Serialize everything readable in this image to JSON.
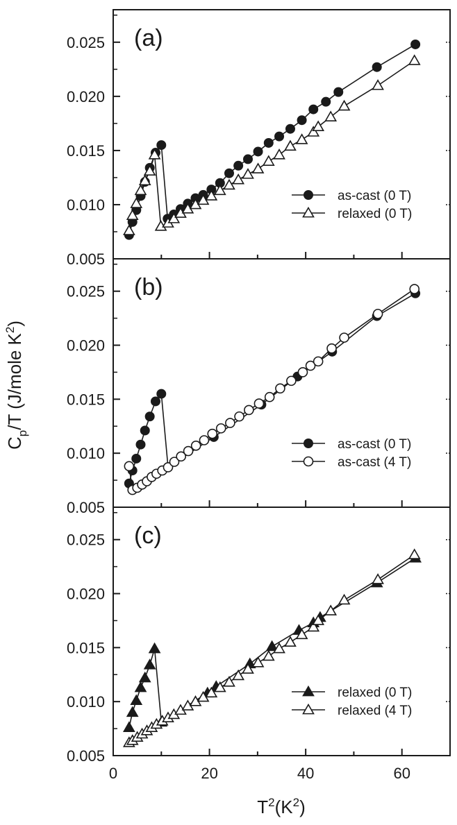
{
  "chart_data": {
    "type": "scatter",
    "xlabel": "T",
    "xlabel_sup": "2",
    "xlabel_tail": "(K",
    "xlabel_sup2": "2",
    "xlabel_close": ")",
    "ylabel_main": "C",
    "ylabel_sub": "p",
    "ylabel_mid": "/T (J/mole K",
    "ylabel_sup": "2",
    "ylabel_close": ")",
    "xlim": [
      0,
      70
    ],
    "ylim": [
      0.005,
      0.028
    ],
    "xticks": [
      0,
      20,
      40,
      60
    ],
    "xtick_labels": [
      "0",
      "20",
      "40",
      "60"
    ],
    "yticks": [
      0.005,
      0.01,
      0.015,
      0.02,
      0.025
    ],
    "ytick_labels": [
      "0.005",
      "0.010",
      "0.015",
      "0.020",
      "0.025"
    ],
    "legend_position": "right",
    "panels": [
      {
        "label": "(a)",
        "series": [
          {
            "name": "as-cast (0 T)",
            "marker": "filled-circle",
            "x": [
              3.3,
              4.0,
              4.8,
              5.7,
              6.6,
              7.6,
              8.8,
              10.0,
              11.3,
              12.6,
              14.0,
              15.5,
              17.1,
              18.7,
              20.4,
              22.2,
              24.1,
              26.0,
              28.0,
              30.1,
              32.3,
              34.5,
              36.8,
              39.2,
              41.6,
              44.2,
              46.8,
              54.8,
              62.8
            ],
            "y": [
              0.0072,
              0.0084,
              0.0095,
              0.0108,
              0.0121,
              0.0134,
              0.0148,
              0.0155,
              0.0087,
              0.0091,
              0.0096,
              0.0101,
              0.0106,
              0.0109,
              0.0114,
              0.012,
              0.0129,
              0.0136,
              0.0142,
              0.0149,
              0.0157,
              0.0163,
              0.017,
              0.0178,
              0.0188,
              0.0195,
              0.0204,
              0.0227,
              0.0248
            ]
          },
          {
            "name": "relaxed (0 T)",
            "marker": "open-triangle",
            "x": [
              3.3,
              4.0,
              4.8,
              5.7,
              6.6,
              7.6,
              8.6,
              9.9,
              11.4,
              12.6,
              14.0,
              15.5,
              17.1,
              18.7,
              20.4,
              22.2,
              24.1,
              26.0,
              28.0,
              30.1,
              32.3,
              34.5,
              36.8,
              39.2,
              41.6,
              42.6,
              45.2,
              48.0,
              55.0,
              62.6
            ],
            "y": [
              0.0076,
              0.009,
              0.0101,
              0.0113,
              0.0122,
              0.0131,
              0.0146,
              0.008,
              0.0083,
              0.0087,
              0.0092,
              0.0096,
              0.01,
              0.0104,
              0.0108,
              0.0113,
              0.0118,
              0.0123,
              0.0128,
              0.0133,
              0.014,
              0.0146,
              0.0154,
              0.016,
              0.0167,
              0.0172,
              0.0181,
              0.0191,
              0.021,
              0.0233
            ]
          }
        ]
      },
      {
        "label": "(b)",
        "series": [
          {
            "name": "as-cast (0 T)",
            "marker": "filled-circle",
            "x": [
              3.3,
              4.0,
              4.8,
              5.7,
              6.6,
              7.6,
              8.8,
              10.0,
              11.4,
              20.9,
              30.8,
              38.3,
              45.5,
              54.8,
              62.8
            ],
            "y": [
              0.0072,
              0.0084,
              0.0095,
              0.0108,
              0.0121,
              0.0134,
              0.0148,
              0.0155,
              0.0087,
              0.0115,
              0.0145,
              0.0171,
              0.0194,
              0.0227,
              0.0248
            ]
          },
          {
            "name": "as-cast (4 T)",
            "marker": "open-circle",
            "x": [
              3.3,
              4.0,
              5.0,
              6.0,
              7.0,
              8.0,
              9.0,
              10.2,
              11.4,
              12.7,
              14.1,
              15.6,
              17.2,
              18.9,
              20.6,
              22.4,
              24.3,
              26.2,
              28.2,
              30.3,
              32.5,
              34.7,
              37.0,
              39.4,
              41.0,
              42.6,
              45.4,
              48.0,
              55.0,
              62.6
            ],
            "y": [
              0.0088,
              0.0066,
              0.0068,
              0.0071,
              0.0074,
              0.0078,
              0.0081,
              0.0084,
              0.0087,
              0.0092,
              0.0097,
              0.0102,
              0.0107,
              0.0112,
              0.0118,
              0.0123,
              0.0128,
              0.0134,
              0.014,
              0.0146,
              0.0152,
              0.016,
              0.0167,
              0.0175,
              0.0181,
              0.0185,
              0.0197,
              0.0207,
              0.0229,
              0.0252
            ]
          }
        ]
      },
      {
        "label": "(c)",
        "series": [
          {
            "name": "relaxed (0 T)",
            "marker": "filled-triangle",
            "x": [
              3.3,
              4.0,
              4.8,
              5.7,
              6.6,
              7.6,
              8.6,
              10.0,
              19.6,
              21.4,
              28.4,
              33.0,
              38.6,
              41.6,
              43.0,
              54.8,
              62.8
            ],
            "y": [
              0.0076,
              0.009,
              0.0101,
              0.0113,
              0.0122,
              0.0134,
              0.0149,
              0.0081,
              0.0108,
              0.0114,
              0.0135,
              0.0151,
              0.0166,
              0.0173,
              0.0178,
              0.021,
              0.0233
            ]
          },
          {
            "name": "relaxed (4 T)",
            "marker": "open-triangle",
            "x": [
              3.3,
              4.0,
              5.0,
              6.0,
              7.0,
              8.0,
              9.0,
              10.2,
              11.4,
              12.6,
              14.0,
              15.5,
              17.1,
              18.7,
              20.4,
              22.2,
              24.1,
              26.0,
              28.0,
              30.1,
              32.3,
              34.5,
              36.8,
              39.2,
              41.6,
              42.6,
              45.2,
              48.0,
              55.0,
              62.6
            ],
            "y": [
              0.0062,
              0.0064,
              0.0067,
              0.007,
              0.0073,
              0.0076,
              0.0079,
              0.0082,
              0.0085,
              0.0088,
              0.0092,
              0.0096,
              0.01,
              0.0104,
              0.0108,
              0.0113,
              0.0118,
              0.0124,
              0.013,
              0.0136,
              0.0142,
              0.0149,
              0.0155,
              0.0162,
              0.0169,
              0.0175,
              0.0184,
              0.0194,
              0.0213,
              0.0236
            ]
          }
        ]
      }
    ]
  }
}
